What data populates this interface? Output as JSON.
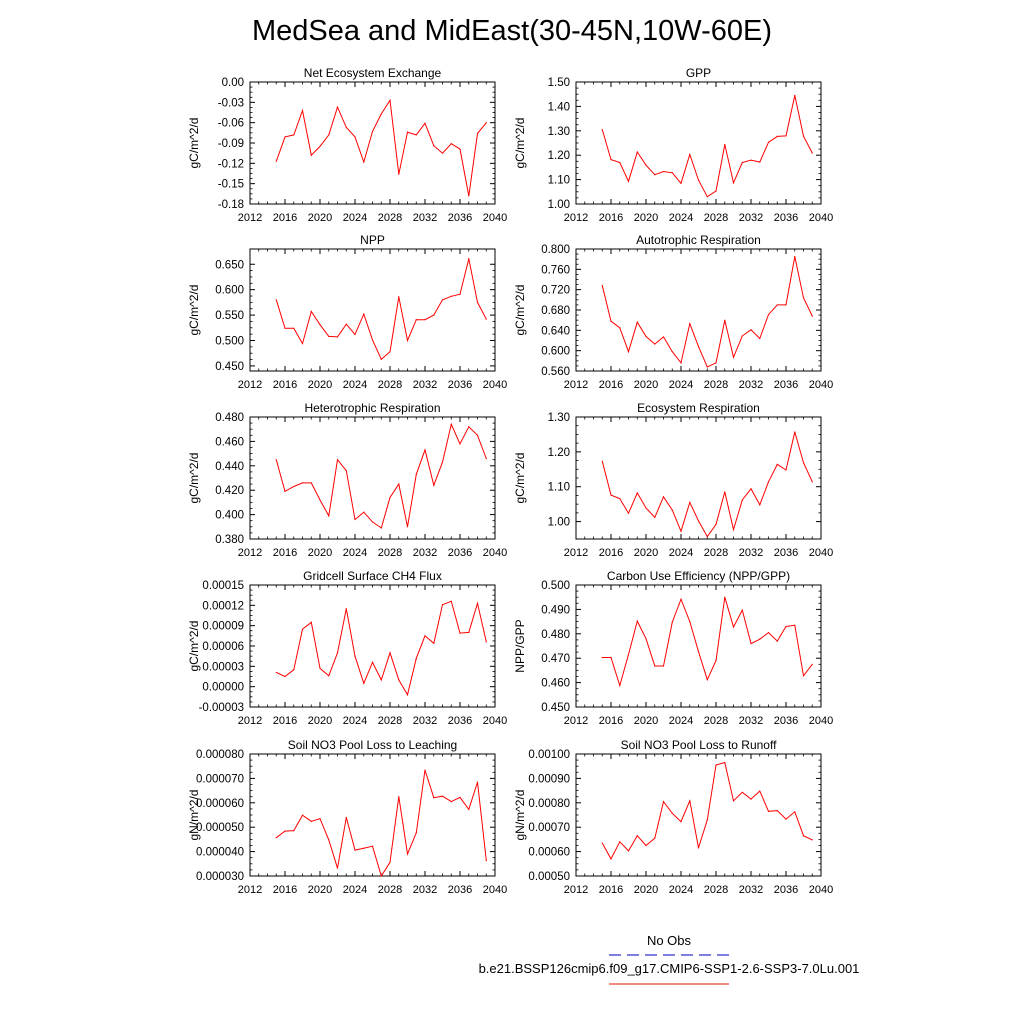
{
  "page_title": "MedSea and MidEast(30-45N,10W-60E)",
  "legend": {
    "entries": [
      {
        "label": "No Obs",
        "color": "#3333cc",
        "dash": true
      },
      {
        "label": "b.e21.BSSP126cmip6.f09_g17.CMIP6-SSP1-2.6-SSP3-7.0Lu.001",
        "color": "#e8443a",
        "dash": false
      }
    ]
  },
  "colors": {
    "series": "#ff0000",
    "obs": "#3333cc",
    "axis": "#000000"
  },
  "chart_data": [
    {
      "type": "line",
      "title": "Net Ecosystem Exchange",
      "ylabel": "gC/m^2/d",
      "xlim": [
        2012,
        2040
      ],
      "ylim": [
        -0.18,
        0.0
      ],
      "xticks": [
        "2012",
        "2016",
        "2020",
        "2024",
        "2028",
        "2032",
        "2036",
        "2040"
      ],
      "yticks": [
        "-0.18",
        "-0.15",
        "-0.12",
        "-0.09",
        "-0.06",
        "-0.03",
        "0.00"
      ],
      "x": [
        2015,
        2016,
        2017,
        2018,
        2019,
        2020,
        2021,
        2022,
        2023,
        2024,
        2025,
        2026,
        2027,
        2028,
        2029,
        2030,
        2031,
        2032,
        2033,
        2034,
        2035,
        2036,
        2037,
        2038,
        2039
      ],
      "series": [
        {
          "values": [
            -0.117,
            -0.081,
            -0.078,
            -0.042,
            -0.108,
            -0.095,
            -0.078,
            -0.037,
            -0.067,
            -0.081,
            -0.118,
            -0.073,
            -0.047,
            -0.027,
            -0.136,
            -0.074,
            -0.078,
            -0.061,
            -0.094,
            -0.105,
            -0.091,
            -0.099,
            -0.168,
            -0.076,
            -0.06
          ]
        }
      ]
    },
    {
      "type": "line",
      "title": "GPP",
      "ylabel": "gC/m^2/d",
      "xlim": [
        2012,
        2040
      ],
      "ylim": [
        1.0,
        1.5
      ],
      "xticks": [
        "2012",
        "2016",
        "2020",
        "2024",
        "2028",
        "2032",
        "2036",
        "2040"
      ],
      "yticks": [
        "1.00",
        "1.10",
        "1.20",
        "1.30",
        "1.40",
        "1.50"
      ],
      "x": [
        2015,
        2016,
        2017,
        2018,
        2019,
        2020,
        2021,
        2022,
        2023,
        2024,
        2025,
        2026,
        2027,
        2028,
        2029,
        2030,
        2031,
        2032,
        2033,
        2034,
        2035,
        2036,
        2037,
        2038,
        2039
      ],
      "series": [
        {
          "values": [
            1.305,
            1.182,
            1.17,
            1.093,
            1.213,
            1.159,
            1.12,
            1.133,
            1.128,
            1.085,
            1.203,
            1.098,
            1.03,
            1.053,
            1.244,
            1.087,
            1.17,
            1.18,
            1.172,
            1.253,
            1.277,
            1.279,
            1.445,
            1.278,
            1.209
          ]
        }
      ]
    },
    {
      "type": "line",
      "title": "NPP",
      "ylabel": "gC/m^2/d",
      "xlim": [
        2012,
        2040
      ],
      "ylim": [
        0.44,
        0.68
      ],
      "xticks": [
        "2012",
        "2016",
        "2020",
        "2024",
        "2028",
        "2032",
        "2036",
        "2040"
      ],
      "yticks": [
        "0.450",
        "0.500",
        "0.550",
        "0.600",
        "0.650"
      ],
      "x": [
        2015,
        2016,
        2017,
        2018,
        2019,
        2020,
        2021,
        2022,
        2023,
        2024,
        2025,
        2026,
        2027,
        2028,
        2029,
        2030,
        2031,
        2032,
        2033,
        2034,
        2035,
        2036,
        2037,
        2038,
        2039
      ],
      "series": [
        {
          "values": [
            0.58,
            0.524,
            0.524,
            0.494,
            0.557,
            0.531,
            0.508,
            0.507,
            0.532,
            0.512,
            0.552,
            0.501,
            0.463,
            0.478,
            0.586,
            0.5,
            0.541,
            0.541,
            0.55,
            0.58,
            0.587,
            0.591,
            0.661,
            0.575,
            0.542
          ]
        }
      ]
    },
    {
      "type": "line",
      "title": "Autotrophic Respiration",
      "ylabel": "gC/m^2/d",
      "xlim": [
        2012,
        2040
      ],
      "ylim": [
        0.56,
        0.8
      ],
      "xticks": [
        "2012",
        "2016",
        "2020",
        "2024",
        "2028",
        "2032",
        "2036",
        "2040"
      ],
      "yticks": [
        "0.560",
        "0.600",
        "0.640",
        "0.680",
        "0.720",
        "0.760",
        "0.800"
      ],
      "x": [
        2015,
        2016,
        2017,
        2018,
        2019,
        2020,
        2021,
        2022,
        2023,
        2024,
        2025,
        2026,
        2027,
        2028,
        2029,
        2030,
        2031,
        2032,
        2033,
        2034,
        2035,
        2036,
        2037,
        2038,
        2039
      ],
      "series": [
        {
          "values": [
            0.728,
            0.658,
            0.645,
            0.598,
            0.656,
            0.628,
            0.613,
            0.627,
            0.598,
            0.576,
            0.653,
            0.608,
            0.568,
            0.576,
            0.66,
            0.587,
            0.629,
            0.641,
            0.624,
            0.671,
            0.69,
            0.69,
            0.785,
            0.704,
            0.668
          ]
        }
      ]
    },
    {
      "type": "line",
      "title": "Heterotrophic Respiration",
      "ylabel": "gC/m^2/d",
      "xlim": [
        2012,
        2040
      ],
      "ylim": [
        0.38,
        0.48
      ],
      "xticks": [
        "2012",
        "2016",
        "2020",
        "2024",
        "2028",
        "2032",
        "2036",
        "2040"
      ],
      "yticks": [
        "0.380",
        "0.400",
        "0.420",
        "0.440",
        "0.460",
        "0.480"
      ],
      "x": [
        2015,
        2016,
        2017,
        2018,
        2019,
        2020,
        2021,
        2022,
        2023,
        2024,
        2025,
        2026,
        2027,
        2028,
        2029,
        2030,
        2031,
        2032,
        2033,
        2034,
        2035,
        2036,
        2037,
        2038,
        2039
      ],
      "series": [
        {
          "values": [
            0.445,
            0.419,
            0.423,
            0.426,
            0.426,
            0.412,
            0.399,
            0.445,
            0.436,
            0.396,
            0.402,
            0.394,
            0.389,
            0.414,
            0.425,
            0.39,
            0.433,
            0.453,
            0.424,
            0.443,
            0.474,
            0.458,
            0.472,
            0.465,
            0.446
          ]
        }
      ]
    },
    {
      "type": "line",
      "title": "Ecosystem Respiration",
      "ylabel": "gC/m^2/d",
      "xlim": [
        2012,
        2040
      ],
      "ylim": [
        0.95,
        1.3
      ],
      "xticks": [
        "2012",
        "2016",
        "2020",
        "2024",
        "2028",
        "2032",
        "2036",
        "2040"
      ],
      "yticks": [
        "1.00",
        "1.10",
        "1.20",
        "1.30"
      ],
      "x": [
        2015,
        2016,
        2017,
        2018,
        2019,
        2020,
        2021,
        2022,
        2023,
        2024,
        2025,
        2026,
        2027,
        2028,
        2029,
        2030,
        2031,
        2032,
        2033,
        2034,
        2035,
        2036,
        2037,
        2038,
        2039
      ],
      "series": [
        {
          "values": [
            1.173,
            1.076,
            1.066,
            1.024,
            1.082,
            1.039,
            1.012,
            1.071,
            1.033,
            0.972,
            1.055,
            1.002,
            0.957,
            0.992,
            1.085,
            0.977,
            1.062,
            1.094,
            1.048,
            1.114,
            1.164,
            1.148,
            1.257,
            1.169,
            1.114
          ]
        }
      ]
    },
    {
      "type": "line",
      "title": "Gridcell Surface CH4 Flux",
      "ylabel": "gC/m^2/d",
      "xlim": [
        2012,
        2040
      ],
      "ylim": [
        -3e-05,
        0.00015
      ],
      "xticks": [
        "2012",
        "2016",
        "2020",
        "2024",
        "2028",
        "2032",
        "2036",
        "2040"
      ],
      "yticks": [
        "-0.00003",
        "0.00000",
        "0.00003",
        "0.00006",
        "0.00009",
        "0.00012",
        "0.00015"
      ],
      "x": [
        2015,
        2016,
        2017,
        2018,
        2019,
        2020,
        2021,
        2022,
        2023,
        2024,
        2025,
        2026,
        2027,
        2028,
        2029,
        2030,
        2031,
        2032,
        2033,
        2034,
        2035,
        2036,
        2037,
        2038,
        2039
      ],
      "series": [
        {
          "values": [
            2.1e-05,
            1.5e-05,
            2.5e-05,
            8.5e-05,
            9.5e-05,
            2.7e-05,
            1.6e-05,
            5e-05,
            0.000115,
            4.5e-05,
            5e-06,
            3.6e-05,
            1e-05,
            5e-05,
            1e-05,
            -1.2e-05,
            4.2e-05,
            7.5e-05,
            6.4e-05,
            0.000121,
            0.000126,
            7.9e-05,
            8e-05,
            0.000123,
            6.6e-05
          ]
        }
      ]
    },
    {
      "type": "line",
      "title": "Carbon Use Efficiency (NPP/GPP)",
      "ylabel": "NPP/GPP",
      "xlim": [
        2012,
        2040
      ],
      "ylim": [
        0.45,
        0.5
      ],
      "xticks": [
        "2012",
        "2016",
        "2020",
        "2024",
        "2028",
        "2032",
        "2036",
        "2040"
      ],
      "yticks": [
        "0.450",
        "0.460",
        "0.470",
        "0.480",
        "0.490",
        "0.500"
      ],
      "x": [
        2015,
        2016,
        2017,
        2018,
        2019,
        2020,
        2021,
        2022,
        2023,
        2024,
        2025,
        2026,
        2027,
        2028,
        2029,
        2030,
        2031,
        2032,
        2033,
        2034,
        2035,
        2036,
        2037,
        2038,
        2039
      ],
      "series": [
        {
          "values": [
            0.4703,
            0.4703,
            0.4588,
            0.4715,
            0.4852,
            0.478,
            0.4668,
            0.4668,
            0.4848,
            0.4942,
            0.485,
            0.4727,
            0.4612,
            0.469,
            0.495,
            0.4828,
            0.4897,
            0.476,
            0.4778,
            0.4805,
            0.477,
            0.483,
            0.4835,
            0.4628,
            0.4675
          ]
        }
      ]
    },
    {
      "type": "line",
      "title": "Soil NO3 Pool Loss to Leaching",
      "ylabel": "gN/m^2/d",
      "xlim": [
        2012,
        2040
      ],
      "ylim": [
        3e-05,
        8e-05
      ],
      "xticks": [
        "2012",
        "2016",
        "2020",
        "2024",
        "2028",
        "2032",
        "2036",
        "2040"
      ],
      "yticks": [
        "0.000030",
        "0.000040",
        "0.000050",
        "0.000060",
        "0.000070",
        "0.000080"
      ],
      "x": [
        2015,
        2016,
        2017,
        2018,
        2019,
        2020,
        2021,
        2022,
        2023,
        2024,
        2025,
        2026,
        2027,
        2028,
        2029,
        2030,
        2031,
        2032,
        2033,
        2034,
        2035,
        2036,
        2037,
        2038,
        2039
      ],
      "series": [
        {
          "values": [
            4.57e-05,
            4.84e-05,
            4.86e-05,
            5.49e-05,
            5.24e-05,
            5.35e-05,
            4.48e-05,
            3.32e-05,
            5.4e-05,
            4.06e-05,
            4.14e-05,
            4.22e-05,
            3e-05,
            3.56e-05,
            6.25e-05,
            3.9e-05,
            4.77e-05,
            7.34e-05,
            6.21e-05,
            6.27e-05,
            6.05e-05,
            6.22e-05,
            5.73e-05,
            6.85e-05,
            3.63e-05
          ]
        }
      ]
    },
    {
      "type": "line",
      "title": "Soil NO3 Pool Loss to Runoff",
      "ylabel": "gN/m^2/d",
      "xlim": [
        2012,
        2040
      ],
      "ylim": [
        0.0005,
        0.001
      ],
      "xticks": [
        "2012",
        "2016",
        "2020",
        "2024",
        "2028",
        "2032",
        "2036",
        "2040"
      ],
      "yticks": [
        "0.00050",
        "0.00060",
        "0.00070",
        "0.00080",
        "0.00090",
        "0.00100"
      ],
      "x": [
        2015,
        2016,
        2017,
        2018,
        2019,
        2020,
        2021,
        2022,
        2023,
        2024,
        2025,
        2026,
        2027,
        2028,
        2029,
        2030,
        2031,
        2032,
        2033,
        2034,
        2035,
        2036,
        2037,
        2038,
        2039
      ],
      "series": [
        {
          "values": [
            0.000635,
            0.00057,
            0.00064,
            0.000603,
            0.000665,
            0.000625,
            0.000655,
            0.000805,
            0.000757,
            0.000723,
            0.000808,
            0.000615,
            0.00073,
            0.000955,
            0.000965,
            0.000808,
            0.000843,
            0.000815,
            0.000848,
            0.000765,
            0.000768,
            0.000733,
            0.000763,
            0.000665,
            0.000648
          ]
        }
      ]
    }
  ]
}
